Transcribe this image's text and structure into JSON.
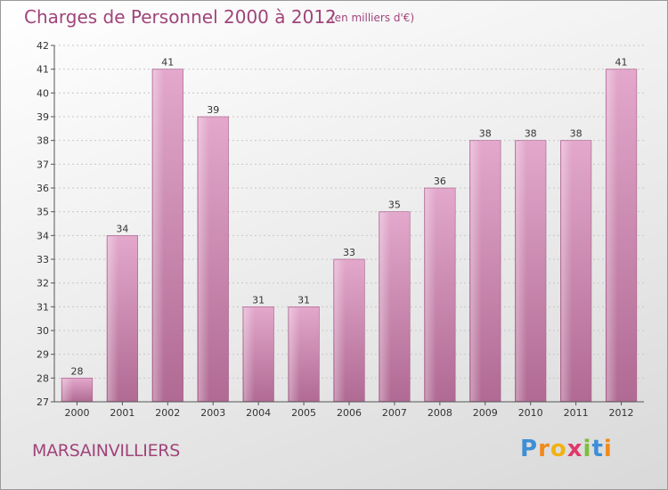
{
  "chart_data": {
    "type": "bar",
    "title": "Charges de Personnel 2000 à 2012",
    "subtitle": "(en milliers d'€)",
    "categories": [
      "2000",
      "2001",
      "2002",
      "2003",
      "2004",
      "2005",
      "2006",
      "2007",
      "2008",
      "2009",
      "2010",
      "2011",
      "2012"
    ],
    "values": [
      28,
      34,
      41,
      39,
      31,
      31,
      33,
      35,
      36,
      38,
      38,
      38,
      41
    ],
    "ylim": [
      27,
      42
    ],
    "yticks": [
      27,
      28,
      29,
      30,
      31,
      32,
      33,
      34,
      35,
      36,
      37,
      38,
      39,
      40,
      41,
      42
    ],
    "xlabel": "",
    "ylabel": "",
    "grid": true,
    "bar_color": "#c97aa6"
  },
  "footer": {
    "commune": "MARSAINVILLIERS",
    "logo_letters": [
      "P",
      "r",
      "o",
      "x",
      "i",
      "t",
      "i"
    ],
    "logo_colors": [
      "#3d8fd6",
      "#f08a1c",
      "#f2b213",
      "#e0396b",
      "#7bbf3a",
      "#3d8fd6",
      "#f08a1c"
    ]
  }
}
